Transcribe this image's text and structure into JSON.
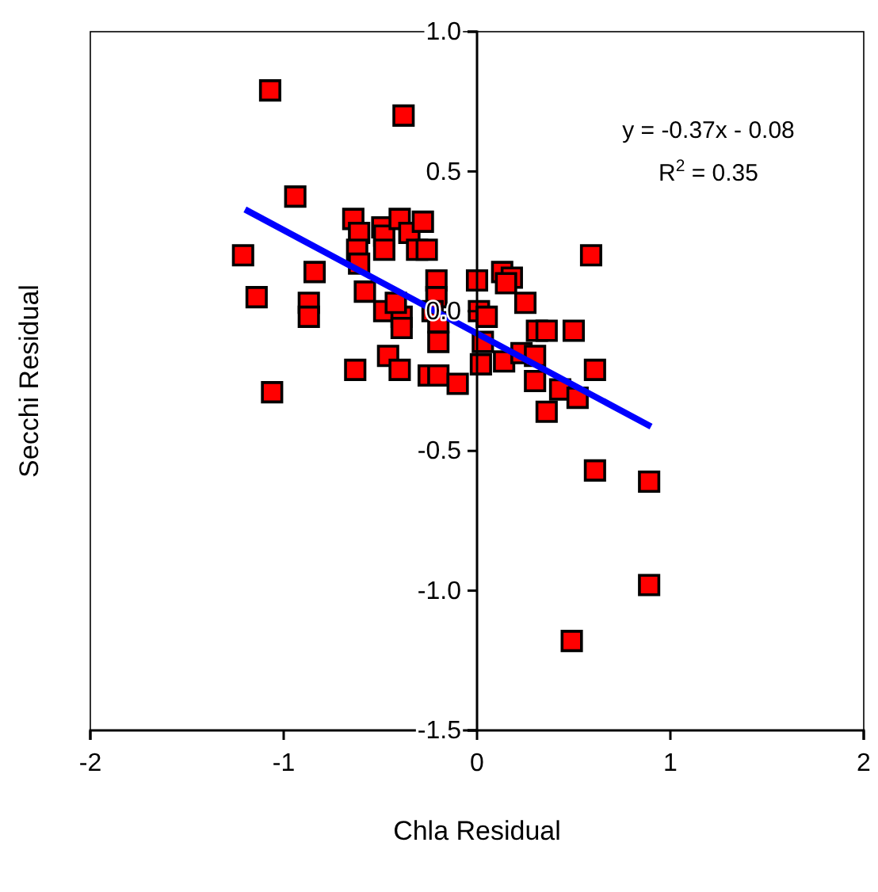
{
  "chart_data": {
    "type": "scatter",
    "xlabel": "Chla Residual",
    "ylabel": "Secchi Residual",
    "xlim": [
      -2,
      2
    ],
    "ylim": [
      -1.5,
      1.0
    ],
    "xticks": [
      -2,
      -1,
      0,
      1,
      2
    ],
    "yticks": [
      {
        "value": -1.5,
        "label": "-1.5"
      },
      {
        "value": -1.0,
        "label": "-1.0"
      },
      {
        "value": -0.5,
        "label": "-0.5"
      },
      {
        "value": 0,
        "label": "0.0"
      },
      {
        "value": 0.5,
        "label": "0.5"
      },
      {
        "value": 1.0,
        "label": "1.0"
      }
    ],
    "grid": false,
    "annotations": [
      "y = -0.37x - 0.08",
      "R$^{2}$ = 0.35"
    ],
    "series": [
      {
        "color": "#ff0000",
        "marker": "square",
        "x": [
          -1.07,
          -0.38,
          -0.94,
          -1.21,
          -1.14,
          -0.84,
          -0.87,
          -0.87,
          -1.06,
          -0.64,
          -0.61,
          -0.62,
          -0.61,
          -0.58,
          -0.49,
          -0.48,
          -0.48,
          -0.4,
          -0.35,
          -0.28,
          -0.31,
          -0.26,
          -0.63,
          -0.46,
          -0.4,
          -0.25,
          -0.2,
          -0.1,
          -0.48,
          -0.39,
          -0.39,
          -0.21,
          -0.21,
          -0.23,
          -0.2,
          -0.2,
          -0.42,
          0.59,
          0.13,
          0.18,
          0.15,
          0.25,
          0.0,
          0.01,
          0.05,
          0.03,
          0.02,
          0.14,
          0.23,
          0.3,
          0.3,
          0.36,
          0.31,
          0.36,
          0.5,
          0.43,
          0.52,
          0.61,
          0.89,
          0.89,
          0.49,
          0.61
        ],
        "values": [
          0.79,
          0.7,
          0.41,
          0.2,
          0.05,
          0.14,
          0.03,
          -0.02,
          -0.29,
          0.33,
          0.28,
          0.22,
          0.17,
          0.07,
          0.3,
          0.27,
          0.22,
          0.33,
          0.28,
          0.32,
          0.22,
          0.22,
          -0.21,
          -0.16,
          -0.21,
          -0.23,
          -0.23,
          -0.26,
          0.0,
          -0.02,
          -0.06,
          0.11,
          0.05,
          0.0,
          -0.04,
          -0.11,
          0.03,
          0.2,
          0.14,
          0.12,
          0.1,
          0.03,
          0.11,
          0.0,
          -0.02,
          -0.11,
          -0.19,
          -0.18,
          -0.15,
          -0.16,
          -0.25,
          -0.36,
          -0.07,
          -0.07,
          -0.07,
          -0.28,
          -0.31,
          -0.21,
          -0.61,
          -0.98,
          -1.18,
          -0.57
        ]
      },
      {
        "type": "line",
        "color": "#0000ff",
        "marker": "none",
        "line_style": "solid",
        "x": [
          -1.2,
          0.9
        ],
        "values": [
          0.364,
          -0.413
        ]
      }
    ]
  }
}
